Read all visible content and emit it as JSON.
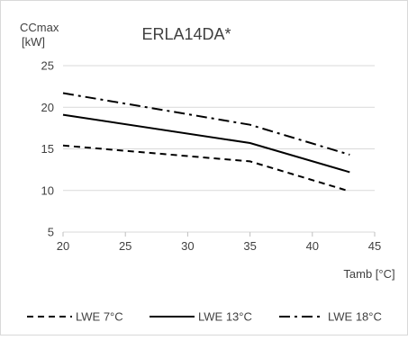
{
  "chart_data": {
    "type": "line",
    "title": "ERLA14DA*",
    "ylabel_line1": "CCmax",
    "ylabel_line2": "[kW]",
    "xlabel": "Tamb [°C]",
    "xlim": [
      20,
      45
    ],
    "ylim": [
      5,
      25
    ],
    "xticks": [
      20,
      25,
      30,
      35,
      40,
      45
    ],
    "yticks": [
      5,
      10,
      15,
      20,
      25
    ],
    "grid": "horizontal",
    "legend_position": "bottom",
    "series": [
      {
        "name": "LWE 7°C",
        "dash": "dashed",
        "color": "#000000",
        "x": [
          20,
          35,
          43
        ],
        "y": [
          15.4,
          13.5,
          9.9
        ]
      },
      {
        "name": "LWE 13°C",
        "dash": "solid",
        "color": "#000000",
        "x": [
          20,
          35,
          43
        ],
        "y": [
          19.1,
          15.7,
          12.2
        ]
      },
      {
        "name": "LWE 18°C",
        "dash": "dashdot",
        "color": "#000000",
        "x": [
          20,
          35,
          43
        ],
        "y": [
          21.7,
          17.9,
          14.3
        ]
      }
    ]
  }
}
